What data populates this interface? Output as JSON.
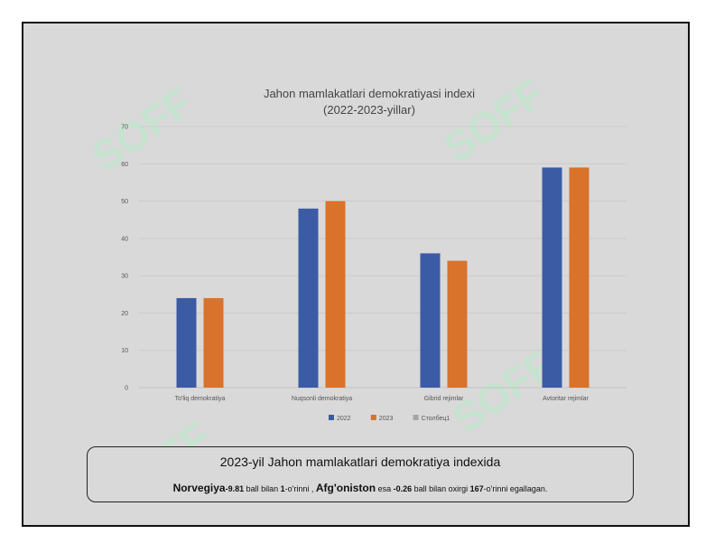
{
  "chart_data": {
    "type": "bar",
    "title": "Jahon mamlakatlari demokratiyasi indexi",
    "subtitle": "(2022-2023-yillar)",
    "categories": [
      "To'liq demokratiya",
      "Nuqsonli demokratiya",
      "Gibrid rejimlar",
      "Avtoritar rejimlar"
    ],
    "series": [
      {
        "name": "2022",
        "color": "#3b5ba5",
        "values": [
          24,
          48,
          36,
          59
        ]
      },
      {
        "name": "2023",
        "color": "#d9722b",
        "values": [
          24,
          50,
          34,
          59
        ]
      },
      {
        "name": "Столбец1",
        "color": "#a5a5a5",
        "values": [
          null,
          null,
          null,
          null
        ]
      }
    ],
    "ylim": [
      0,
      70
    ],
    "yticks": [
      0,
      10,
      20,
      30,
      40,
      50,
      60,
      70
    ],
    "grid": true,
    "legend": "bottom"
  },
  "caption": {
    "heading": "2023-yil Jahon mamlakatlari demokratiya indexida",
    "country1": "Norvegiya",
    "country1_score": "-9.81",
    "text1": " ball bilan ",
    "rank1": "1",
    "text2": "-o'rinni , ",
    "country2": "Afg'oniston",
    "text3": " esa ",
    "country2_score": "-0.26",
    "text4": " ball bilan oxirgi ",
    "rank2": "167",
    "text5": "-o'rinni egallagan."
  },
  "watermark": "SOFF"
}
